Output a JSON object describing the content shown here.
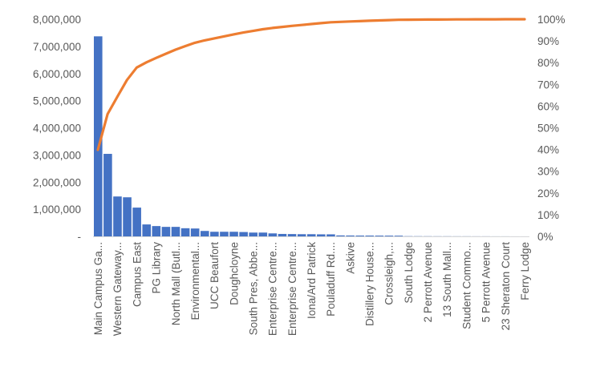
{
  "chart_data": {
    "type": "bar+line",
    "title": "",
    "xlabel": "",
    "ylabel": "",
    "categories": [
      "Main Campus Ga...",
      "",
      "Western Gateway...",
      "",
      "Campus East",
      "",
      "PG Library",
      "",
      "North Mall  (Butl...",
      "",
      "Environmental...",
      "",
      "UCC Beaufort",
      "",
      "Doughcloyne",
      "",
      "South Pres, Abbe...",
      "",
      "Enterprise Centre...",
      "",
      "Enterprise Centre...",
      "",
      "Iona/Ard Patrick",
      "",
      "Pouladuff Rd....",
      "",
      "Askive",
      "",
      "Distillery House...",
      "",
      "Crossleigh,...",
      "",
      "South Lodge",
      "",
      "2 Perrott Avenue",
      "",
      "13 South Mall...",
      "",
      "Student Commo...",
      "",
      "5 Perrott Avenue",
      "",
      "23 Sheraton Court",
      "",
      "Ferry Lodge"
    ],
    "values": [
      7370000,
      3040000,
      1470000,
      1440000,
      1060000,
      440000,
      380000,
      350000,
      350000,
      300000,
      290000,
      200000,
      170000,
      170000,
      170000,
      160000,
      140000,
      140000,
      110000,
      90000,
      85000,
      80000,
      80000,
      75000,
      75000,
      35000,
      32000,
      30000,
      30000,
      28000,
      27000,
      25000,
      8000,
      7000,
      6000,
      5000,
      5000,
      4000,
      4000,
      3000,
      3000,
      2000,
      2000,
      1000,
      1000
    ],
    "line_series": "cumulative percentage of values",
    "y_left": {
      "range": [
        0,
        8000000
      ],
      "ticks": [
        "-",
        "1,000,000",
        "2,000,000",
        "3,000,000",
        "4,000,000",
        "5,000,000",
        "6,000,000",
        "7,000,000",
        "8,000,000"
      ]
    },
    "y_right": {
      "range": [
        0,
        100
      ],
      "ticks": [
        "0%",
        "10%",
        "20%",
        "30%",
        "40%",
        "50%",
        "60%",
        "70%",
        "80%",
        "90%",
        "100%"
      ]
    },
    "grid": false,
    "legend": "none",
    "colors": {
      "bar": "#4472C4",
      "line": "#ED7D31",
      "axis": "#D9D9D9"
    }
  }
}
